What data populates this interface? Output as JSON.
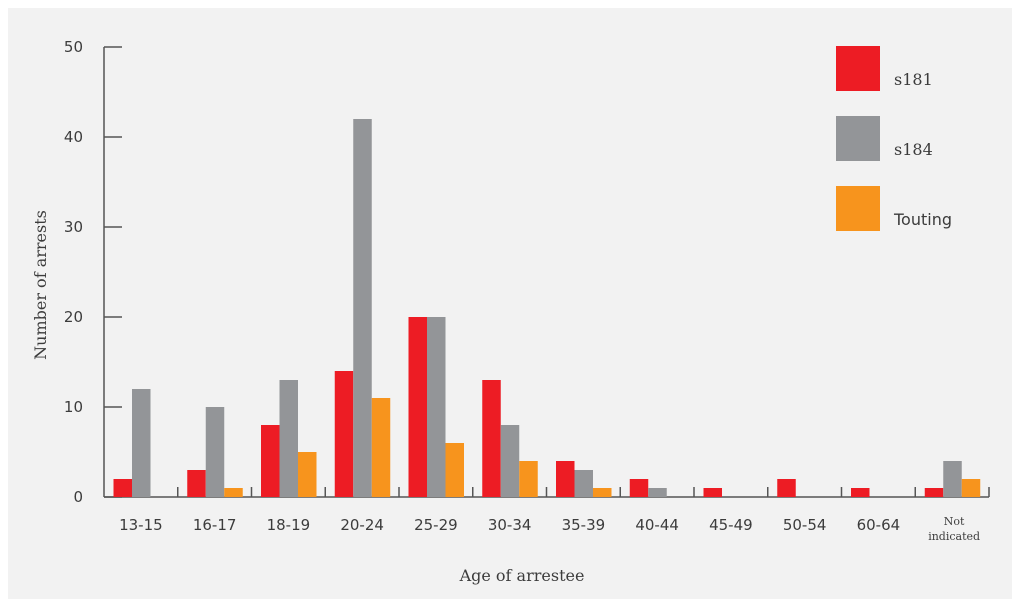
{
  "chart_data": {
    "type": "bar",
    "xlabel": "Age of arrestee",
    "ylabel": "Number of arrests",
    "ylim": [
      0,
      50
    ],
    "yticks": [
      0,
      10,
      20,
      30,
      40,
      50
    ],
    "legend_position": "top-right",
    "grid": false,
    "categories": [
      "13-15",
      "16-17",
      "18-19",
      "20-24",
      "25-29",
      "30-34",
      "35-39",
      "40-44",
      "45-49",
      "50-54",
      "60-64",
      "Not indicated"
    ],
    "series": [
      {
        "name": "s181",
        "color": "#ed1c24",
        "values": [
          2,
          3,
          8,
          14,
          20,
          13,
          4,
          2,
          1,
          2,
          1,
          1
        ]
      },
      {
        "name": "s184",
        "color": "#939598",
        "values": [
          12,
          10,
          13,
          42,
          20,
          8,
          3,
          1,
          0,
          0,
          0,
          4
        ]
      },
      {
        "name": "Touting",
        "color": "#f7941d",
        "values": [
          0,
          1,
          5,
          11,
          6,
          4,
          1,
          0,
          0,
          0,
          0,
          2
        ]
      }
    ]
  }
}
